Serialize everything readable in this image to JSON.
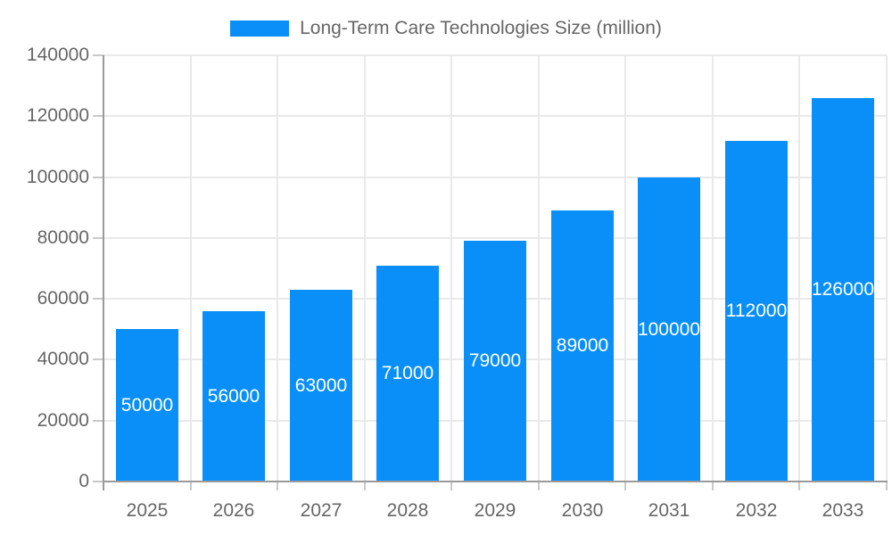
{
  "legend": {
    "label": "Long-Term Care Technologies Size (million)"
  },
  "colors": {
    "bar": "#0A8FF8",
    "grid": "#E9E9E9",
    "axis_line": "#9A9A9A",
    "tick_mark": "#C9C9C9",
    "axis_text": "#666666",
    "bar_label_text": "#FFFFFF",
    "background": "#FFFFFF"
  },
  "chart_data": {
    "type": "bar",
    "title": "Long-Term Care Technologies Size (million)",
    "categories": [
      "2025",
      "2026",
      "2027",
      "2028",
      "2029",
      "2030",
      "2031",
      "2032",
      "2033"
    ],
    "values": [
      50000,
      56000,
      63000,
      71000,
      79000,
      89000,
      100000,
      112000,
      126000
    ],
    "series_name": "Long-Term Care Technologies Size (million)",
    "xlabel": "",
    "ylabel": "",
    "ylim": [
      0,
      140000
    ],
    "yticks": [
      0,
      20000,
      40000,
      60000,
      80000,
      100000,
      120000,
      140000
    ],
    "grid": true,
    "legend_position": "top",
    "bar_value_labels": "inside-center, white"
  }
}
